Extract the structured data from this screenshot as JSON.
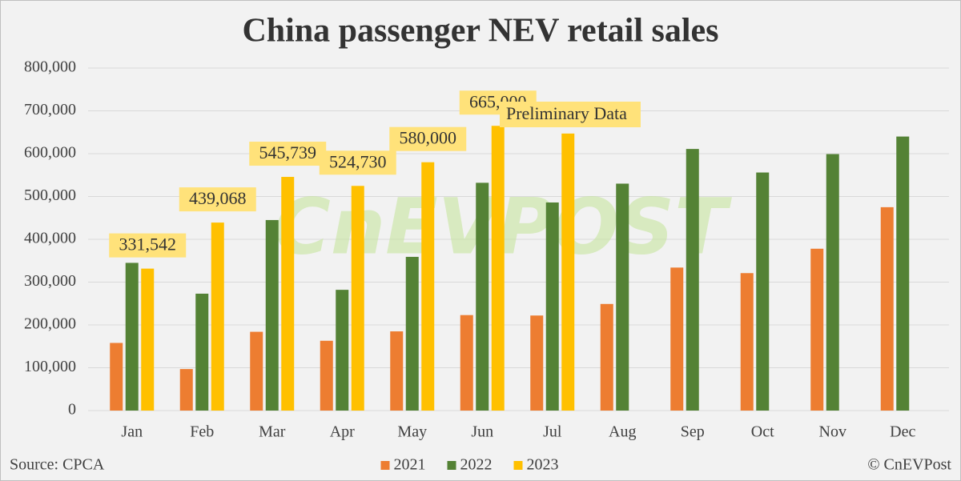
{
  "chart_data": {
    "type": "bar",
    "title": "China passenger NEV retail sales",
    "categories": [
      "Jan",
      "Feb",
      "Mar",
      "Apr",
      "May",
      "Jun",
      "Jul",
      "Aug",
      "Sep",
      "Oct",
      "Nov",
      "Dec"
    ],
    "series": [
      {
        "name": "2021",
        "color": "#ed7d31",
        "values": [
          158000,
          97000,
          184000,
          163000,
          185000,
          223000,
          222000,
          249000,
          334000,
          321000,
          378000,
          475000
        ]
      },
      {
        "name": "2022",
        "color": "#548235",
        "values": [
          345000,
          273000,
          445000,
          282000,
          359000,
          532000,
          486000,
          530000,
          611000,
          556000,
          599000,
          640000
        ]
      },
      {
        "name": "2023",
        "color": "#ffc000",
        "values": [
          331542,
          439068,
          545739,
          524730,
          580000,
          665000,
          647000,
          null,
          null,
          null,
          null,
          null
        ],
        "value_labels": [
          "331,542",
          "439,068",
          "545,739",
          "524,730",
          "580,000",
          "665,000",
          null,
          null,
          null,
          null,
          null,
          null
        ]
      }
    ],
    "ylim": [
      0,
      800000
    ],
    "yticks": [
      0,
      {
        "value": 100000,
        "label": "100,000"
      },
      {
        "value": 200000,
        "label": "200,000"
      },
      {
        "value": 300000,
        "label": "300,000"
      },
      {
        "value": 400000,
        "label": "400,000"
      },
      {
        "value": 500000,
        "label": "500,000"
      },
      {
        "value": 600000,
        "label": "600,000"
      },
      {
        "value": 700000,
        "label": "700,000"
      },
      {
        "value": 800000,
        "label": "800,000"
      }
    ],
    "grid": true,
    "legend": "bottom",
    "annotation": "Preliminary Data",
    "watermark": "CnEVPOST",
    "source": "Source: CPCA",
    "credit": "© CnEVPost"
  }
}
